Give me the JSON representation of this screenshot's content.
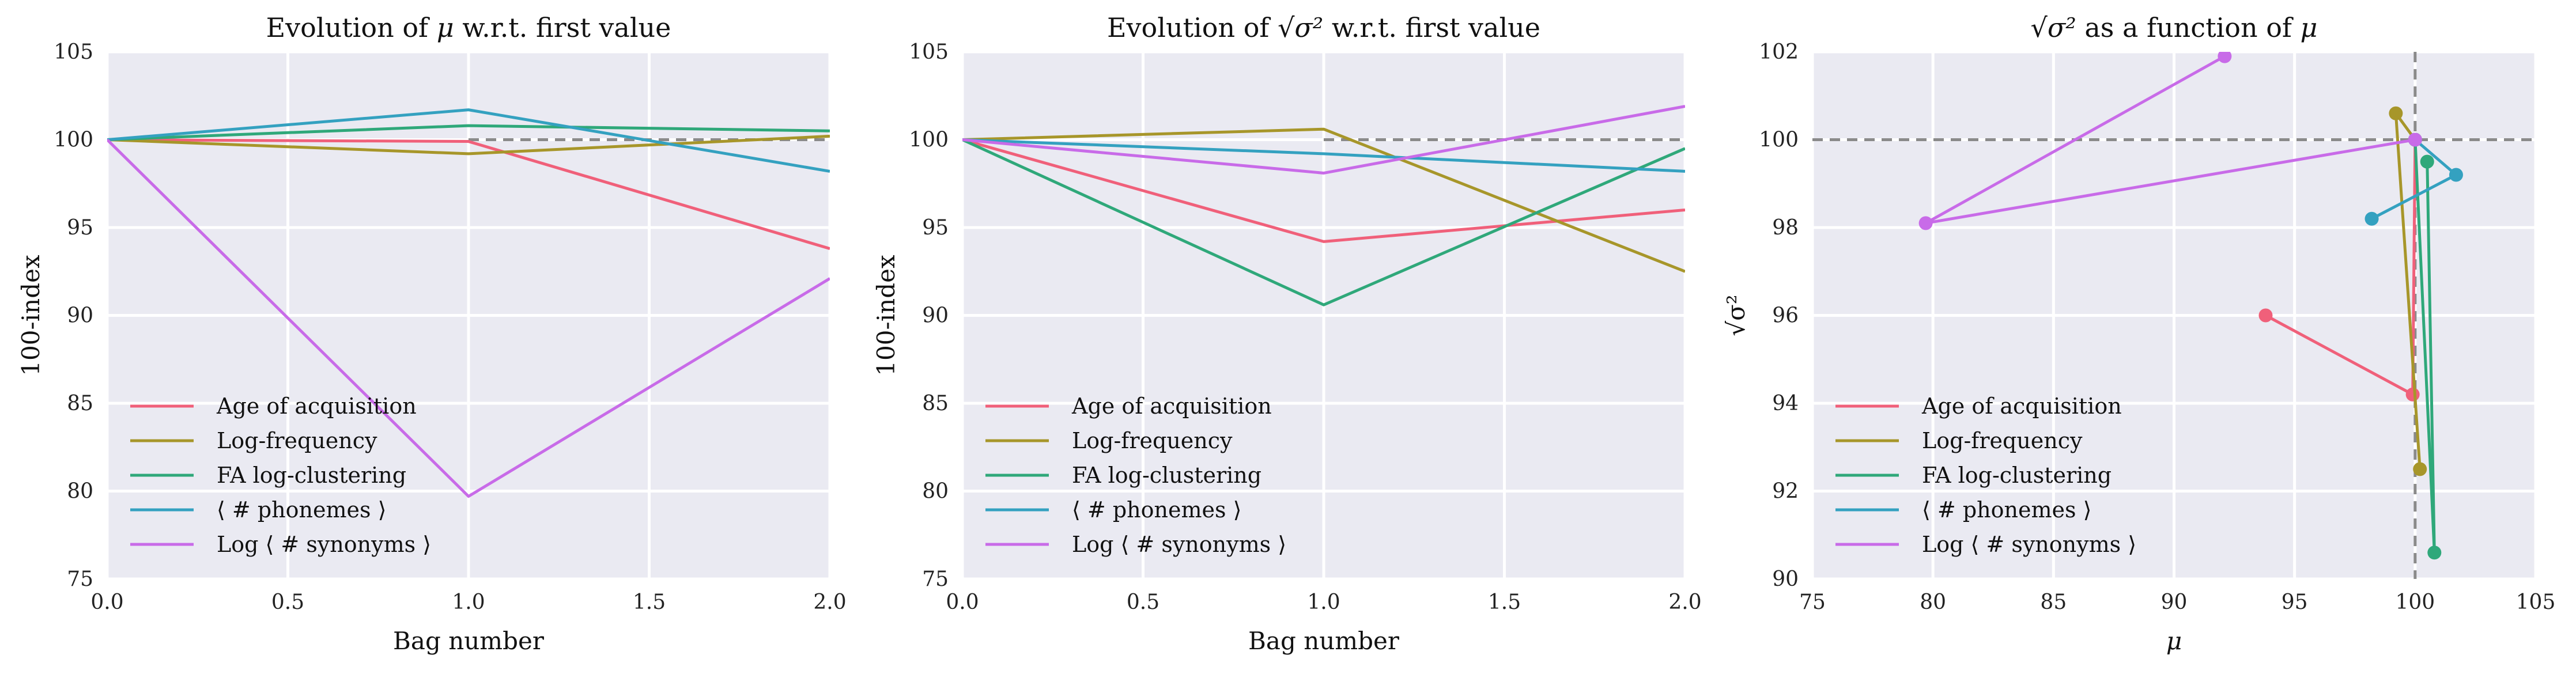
{
  "colors": {
    "age": "#f0607a",
    "logfreq": "#a7962a",
    "fa": "#2fa87a",
    "phon": "#34a1c0",
    "syn": "#c86be8",
    "background": "#eaeaf2",
    "grid": "#ffffff",
    "reference": "#8a8a8a"
  },
  "chart_data": [
    {
      "type": "line",
      "title_parts": [
        "Evolution of ",
        "μ",
        " w.r.t. first value"
      ],
      "xlabel": "Bag number",
      "ylabel": "100-index",
      "xlim": [
        0,
        2
      ],
      "ylim": [
        75,
        105
      ],
      "xticks": [
        "0.0",
        "0.5",
        "1.0",
        "1.5",
        "2.0"
      ],
      "yticks": [
        "75",
        "80",
        "85",
        "90",
        "95",
        "100",
        "105"
      ],
      "grid": true,
      "legend_position": "lower-left",
      "reference_line": {
        "orientation": "horizontal",
        "value": 100,
        "x_from": 1.0
      },
      "x": [
        0,
        1,
        2
      ],
      "series": [
        {
          "name": "Age of acquisition",
          "color_key": "age",
          "values": [
            100,
            99.9,
            93.8
          ]
        },
        {
          "name": "Log-frequency",
          "color_key": "logfreq",
          "values": [
            100,
            99.2,
            100.2
          ]
        },
        {
          "name": "FA log-clustering",
          "color_key": "fa",
          "values": [
            100,
            100.8,
            100.5
          ]
        },
        {
          "name": "⟨ # phonemes ⟩",
          "color_key": "phon",
          "values": [
            100,
            101.7,
            98.2
          ]
        },
        {
          "name": "Log ⟨ # synonyms ⟩",
          "color_key": "syn",
          "values": [
            100,
            79.7,
            92.1
          ]
        }
      ]
    },
    {
      "type": "line",
      "title_parts": [
        "Evolution of ",
        "√σ²",
        " w.r.t. first value"
      ],
      "xlabel": "Bag number",
      "ylabel": "100-index",
      "xlim": [
        0,
        2
      ],
      "ylim": [
        75,
        105
      ],
      "xticks": [
        "0.0",
        "0.5",
        "1.0",
        "1.5",
        "2.0"
      ],
      "yticks": [
        "75",
        "80",
        "85",
        "90",
        "95",
        "100",
        "105"
      ],
      "grid": true,
      "legend_position": "lower-left",
      "reference_line": {
        "orientation": "horizontal",
        "value": 100,
        "x_from": 1.0
      },
      "x": [
        0,
        1,
        2
      ],
      "series": [
        {
          "name": "Age of acquisition",
          "color_key": "age",
          "values": [
            100,
            94.2,
            96.0
          ]
        },
        {
          "name": "Log-frequency",
          "color_key": "logfreq",
          "values": [
            100,
            100.6,
            92.5
          ]
        },
        {
          "name": "FA log-clustering",
          "color_key": "fa",
          "values": [
            100,
            90.6,
            99.5
          ]
        },
        {
          "name": "⟨ # phonemes ⟩",
          "color_key": "phon",
          "values": [
            100,
            99.2,
            98.2
          ]
        },
        {
          "name": "Log ⟨ # synonyms ⟩",
          "color_key": "syn",
          "values": [
            100,
            98.1,
            101.9
          ]
        }
      ]
    },
    {
      "type": "scatter",
      "title_parts": [
        "√σ²",
        " as a function of ",
        "μ"
      ],
      "xlabel": "μ",
      "ylabel": "√σ²",
      "xlim": [
        75,
        105
      ],
      "ylim": [
        90,
        102
      ],
      "xticks": [
        "75",
        "80",
        "85",
        "90",
        "95",
        "100",
        "105"
      ],
      "yticks": [
        "90",
        "92",
        "94",
        "96",
        "98",
        "100",
        "102"
      ],
      "grid": true,
      "legend_position": "lower-left",
      "reference_lines": [
        {
          "orientation": "horizontal",
          "value": 100
        },
        {
          "orientation": "vertical",
          "value": 100
        }
      ],
      "series": [
        {
          "name": "Age of acquisition",
          "color_key": "age",
          "points": [
            [
              100,
              100
            ],
            [
              99.9,
              94.2
            ],
            [
              93.8,
              96.0
            ]
          ]
        },
        {
          "name": "Log-frequency",
          "color_key": "logfreq",
          "points": [
            [
              100,
              100
            ],
            [
              99.2,
              100.6
            ],
            [
              100.2,
              92.5
            ]
          ]
        },
        {
          "name": "FA log-clustering",
          "color_key": "fa",
          "points": [
            [
              100,
              100
            ],
            [
              100.8,
              90.6
            ],
            [
              100.5,
              99.5
            ]
          ]
        },
        {
          "name": "⟨ # phonemes ⟩",
          "color_key": "phon",
          "points": [
            [
              100,
              100
            ],
            [
              101.7,
              99.2
            ],
            [
              98.2,
              98.2
            ]
          ]
        },
        {
          "name": "Log ⟨ # synonyms ⟩",
          "color_key": "syn",
          "points": [
            [
              100,
              100
            ],
            [
              79.7,
              98.1
            ],
            [
              92.1,
              101.9
            ]
          ]
        }
      ]
    }
  ]
}
